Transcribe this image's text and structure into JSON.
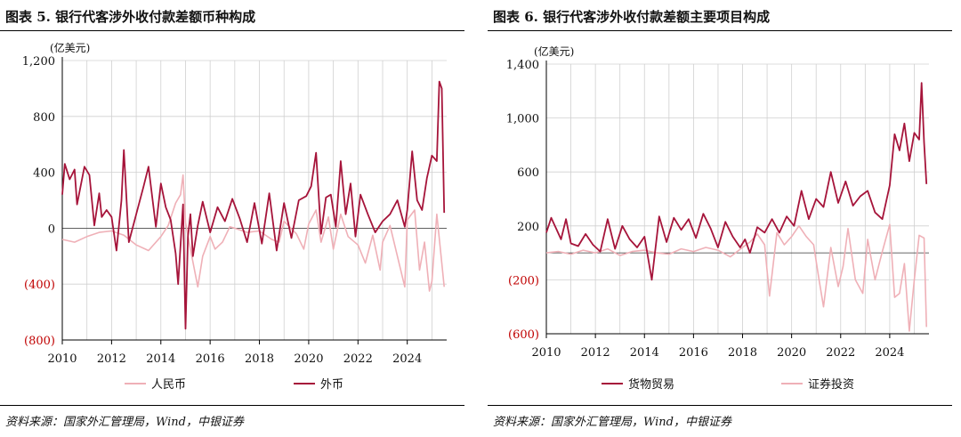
{
  "colors": {
    "dark": "#A6143A",
    "light": "#EFB0B7",
    "grid": "#D0D0D0",
    "neg": "#C00000"
  },
  "panels": [
    {
      "title": "图表 5. 银行代客涉外收付款差额币种构成",
      "unit": "(亿美元)",
      "source": "资料来源：国家外汇管理局，Wind，中银证券"
    },
    {
      "title": "图表 6. 银行代客涉外收付款差额主要项目构成",
      "unit": "(亿美元)",
      "source": "资料来源：国家外汇管理局，Wind，中银证券"
    }
  ],
  "chart_data": [
    {
      "type": "line",
      "title": "图表 5. 银行代客涉外收付款差额币种构成",
      "ylabel": "(亿美元)",
      "ylim": [
        -800,
        1200
      ],
      "yticks": [
        -800,
        -400,
        0,
        400,
        800,
        1200
      ],
      "ytick_labels": [
        "(800)",
        "(400)",
        "0",
        "400",
        "800",
        "1,200"
      ],
      "xlim": [
        2010,
        2025.6
      ],
      "xticks": [
        2010,
        2012,
        2014,
        2016,
        2018,
        2020,
        2022,
        2024
      ],
      "grid": true,
      "legend": "bottom",
      "series": [
        {
          "name": "人民币",
          "color": "#EFB0B7",
          "x": [
            2010.0,
            2010.5,
            2011.0,
            2011.5,
            2012.0,
            2012.5,
            2013.0,
            2013.5,
            2014.0,
            2014.3,
            2014.6,
            2014.8,
            2014.9,
            2015.0,
            2015.2,
            2015.5,
            2015.7,
            2016.0,
            2016.2,
            2016.5,
            2016.8,
            2017.0,
            2017.5,
            2018.0,
            2018.5,
            2018.8,
            2019.0,
            2019.5,
            2019.8,
            2020.0,
            2020.3,
            2020.5,
            2020.8,
            2021.0,
            2021.3,
            2021.6,
            2022.0,
            2022.3,
            2022.6,
            2022.9,
            2023.0,
            2023.3,
            2023.6,
            2023.9,
            2024.0,
            2024.3,
            2024.5,
            2024.7,
            2024.9,
            2025.0,
            2025.2,
            2025.4,
            2025.5
          ],
          "values": [
            -80,
            -100,
            -60,
            -30,
            -20,
            -50,
            -120,
            -160,
            -60,
            20,
            180,
            240,
            380,
            40,
            -150,
            -420,
            -200,
            -60,
            -150,
            -100,
            10,
            0,
            -30,
            -20,
            -80,
            -100,
            50,
            -40,
            -150,
            30,
            130,
            -100,
            80,
            -150,
            100,
            -60,
            -120,
            -250,
            -50,
            -300,
            -100,
            20,
            -200,
            -420,
            60,
            130,
            -300,
            -100,
            -450,
            -380,
            100,
            -250,
            -420
          ]
        },
        {
          "name": "外币",
          "color": "#A6143A",
          "x": [
            2010.0,
            2010.1,
            2010.3,
            2010.5,
            2010.6,
            2010.9,
            2011.1,
            2011.3,
            2011.5,
            2011.6,
            2011.8,
            2012.0,
            2012.2,
            2012.4,
            2012.5,
            2012.7,
            2013.0,
            2013.3,
            2013.5,
            2013.8,
            2014.0,
            2014.2,
            2014.4,
            2014.6,
            2014.7,
            2014.9,
            2015.0,
            2015.1,
            2015.2,
            2015.3,
            2015.5,
            2015.7,
            2016.0,
            2016.3,
            2016.6,
            2016.9,
            2017.2,
            2017.5,
            2017.8,
            2018.1,
            2018.4,
            2018.7,
            2019.0,
            2019.3,
            2019.6,
            2019.9,
            2020.1,
            2020.3,
            2020.5,
            2020.7,
            2020.9,
            2021.1,
            2021.3,
            2021.5,
            2021.7,
            2021.9,
            2022.1,
            2022.4,
            2022.7,
            2023.0,
            2023.3,
            2023.6,
            2023.9,
            2024.0,
            2024.2,
            2024.4,
            2024.6,
            2024.8,
            2025.0,
            2025.2,
            2025.3,
            2025.4,
            2025.5
          ],
          "values": [
            240,
            460,
            350,
            420,
            170,
            440,
            380,
            20,
            250,
            80,
            130,
            80,
            -160,
            200,
            560,
            -100,
            100,
            300,
            440,
            10,
            320,
            150,
            60,
            -180,
            -400,
            170,
            -720,
            -60,
            100,
            -200,
            20,
            190,
            -30,
            150,
            50,
            210,
            70,
            -100,
            180,
            -110,
            250,
            -160,
            180,
            -70,
            200,
            230,
            300,
            540,
            -40,
            220,
            240,
            10,
            480,
            100,
            320,
            -60,
            240,
            100,
            -30,
            50,
            100,
            200,
            10,
            130,
            550,
            200,
            130,
            360,
            520,
            480,
            1050,
            1000,
            110
          ]
        }
      ]
    },
    {
      "type": "line",
      "title": "图表 6. 银行代客涉外收付款差额主要项目构成",
      "ylabel": "(亿美元)",
      "ylim": [
        -600,
        1400
      ],
      "yticks": [
        -600,
        -200,
        200,
        600,
        1000,
        1400
      ],
      "ytick_labels": [
        "(600)",
        "(200)",
        "200",
        "600",
        "1,000",
        "1,400"
      ],
      "xlim": [
        2010,
        2025.6
      ],
      "xticks": [
        2010,
        2012,
        2014,
        2016,
        2018,
        2020,
        2022,
        2024
      ],
      "grid": true,
      "legend": "bottom",
      "series": [
        {
          "name": "货物贸易",
          "color": "#A6143A",
          "x": [
            2010.0,
            2010.2,
            2010.4,
            2010.6,
            2010.8,
            2011.0,
            2011.3,
            2011.6,
            2011.9,
            2012.2,
            2012.5,
            2012.8,
            2013.1,
            2013.4,
            2013.7,
            2014.0,
            2014.3,
            2014.6,
            2014.9,
            2015.2,
            2015.5,
            2015.8,
            2016.1,
            2016.4,
            2016.7,
            2017.0,
            2017.3,
            2017.6,
            2017.9,
            2018.1,
            2018.3,
            2018.6,
            2018.9,
            2019.2,
            2019.5,
            2019.8,
            2020.1,
            2020.4,
            2020.7,
            2021.0,
            2021.3,
            2021.6,
            2021.9,
            2022.2,
            2022.5,
            2022.8,
            2023.1,
            2023.4,
            2023.7,
            2024.0,
            2024.2,
            2024.4,
            2024.6,
            2024.8,
            2025.0,
            2025.2,
            2025.3,
            2025.4,
            2025.5
          ],
          "values": [
            150,
            260,
            180,
            100,
            250,
            70,
            50,
            140,
            60,
            10,
            250,
            30,
            200,
            100,
            40,
            120,
            -200,
            270,
            80,
            260,
            170,
            250,
            110,
            290,
            180,
            40,
            230,
            120,
            40,
            100,
            0,
            190,
            150,
            250,
            150,
            270,
            200,
            460,
            250,
            400,
            340,
            600,
            370,
            530,
            350,
            420,
            460,
            300,
            250,
            500,
            880,
            760,
            960,
            680,
            890,
            840,
            1260,
            820,
            510
          ]
        },
        {
          "name": "证券投资",
          "color": "#EFB0B7",
          "x": [
            2010.0,
            2010.5,
            2011.0,
            2011.5,
            2012.0,
            2012.5,
            2013.0,
            2013.5,
            2014.0,
            2014.5,
            2015.0,
            2015.5,
            2016.0,
            2016.5,
            2017.0,
            2017.5,
            2018.0,
            2018.3,
            2018.6,
            2018.9,
            2019.1,
            2019.4,
            2019.7,
            2020.0,
            2020.3,
            2020.6,
            2020.9,
            2021.1,
            2021.3,
            2021.6,
            2021.9,
            2022.1,
            2022.3,
            2022.6,
            2022.9,
            2023.1,
            2023.4,
            2023.7,
            2024.0,
            2024.2,
            2024.4,
            2024.6,
            2024.8,
            2025.0,
            2025.2,
            2025.4,
            2025.5
          ],
          "values": [
            0,
            10,
            -10,
            20,
            0,
            30,
            -20,
            10,
            20,
            0,
            -10,
            30,
            10,
            40,
            20,
            -30,
            40,
            80,
            140,
            60,
            -320,
            150,
            60,
            120,
            200,
            120,
            60,
            -180,
            -400,
            40,
            -250,
            -100,
            180,
            -200,
            -300,
            100,
            -200,
            10,
            210,
            -330,
            -300,
            -80,
            -580,
            -200,
            130,
            110,
            -550
          ]
        }
      ]
    }
  ]
}
